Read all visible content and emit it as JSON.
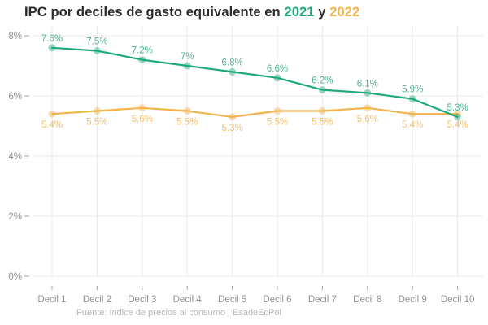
{
  "title": {
    "prefix": "IPC por deciles de gasto equivalente en ",
    "year_2021": "2021",
    "conjunction": " y ",
    "year_2022": "2022"
  },
  "footer": {
    "source": "Fuente: Indice de precios al consumo | EsadeEcPol"
  },
  "colors": {
    "green_line": "#1fa97d",
    "green_label": "#4db494",
    "orange_line": "#f2b44c",
    "orange_label": "#f4c06d",
    "title_text": "#2b2b2b",
    "axis_text": "#8d9298",
    "grid": "#e9e9e9",
    "background": "#ffffff"
  },
  "chart_data": {
    "type": "line",
    "title": "IPC por deciles de gasto equivalente en 2021 y 2022",
    "categories": [
      "Decil 1",
      "Decil 2",
      "Decil 3",
      "Decil 4",
      "Decil 5",
      "Decil 6",
      "Decil 7",
      "Decil 8",
      "Decil 9",
      "Decil 10"
    ],
    "series": [
      {
        "name": "2021",
        "color": "#1fa97d",
        "label_color": "#4db494",
        "label_position": "above",
        "values": [
          7.6,
          7.5,
          7.2,
          7.0,
          6.8,
          6.6,
          6.2,
          6.1,
          5.9,
          5.3
        ],
        "labels": [
          "7.6%",
          "7.5%",
          "7.2%",
          "7%",
          "6.8%",
          "6.6%",
          "6.2%",
          "6.1%",
          "5.9%",
          "5.3%"
        ]
      },
      {
        "name": "2022",
        "color": "#f2b44c",
        "label_color": "#f4c06d",
        "label_position": "below",
        "values": [
          5.4,
          5.5,
          5.6,
          5.5,
          5.3,
          5.5,
          5.5,
          5.6,
          5.4,
          5.4
        ],
        "labels": [
          "5.4%",
          "5.5%",
          "5.6%",
          "5.5%",
          "5.3%",
          "5.5%",
          "5.5%",
          "5.6%",
          "5.4%",
          "5.4%"
        ]
      }
    ],
    "y_ticks": [
      {
        "label": "8%",
        "value": 8
      },
      {
        "label": "6%",
        "value": 6
      },
      {
        "label": "4%",
        "value": 4
      },
      {
        "label": "2%",
        "value": 2
      },
      {
        "label": "0%",
        "value": 0
      }
    ],
    "ylim": [
      0,
      8.2
    ],
    "grid": true,
    "legend": "inline-title",
    "footer": "Fuente: Indice de precios al consumo | EsadeEcPol"
  }
}
